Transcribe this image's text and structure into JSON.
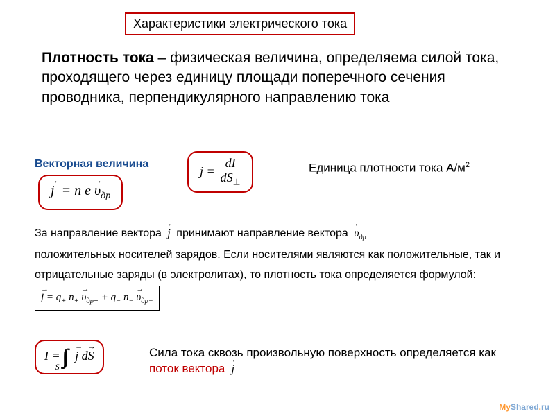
{
  "colors": {
    "border_red": "#c00000",
    "text_black": "#000000",
    "text_blue": "#174a8f",
    "background": "#ffffff",
    "watermark_blue": "#7fa8f0",
    "watermark_orange": "#ff9933"
  },
  "typography": {
    "title_fontsize": 18,
    "body_fontsize": 21,
    "para2_fontsize": 16,
    "formula_family": "Times New Roman",
    "formula_style": "italic"
  },
  "title": "Характеристики электрического тока",
  "definition": {
    "lead": "Плотность тока",
    "rest": " – физическая величина, определяема силой тока, проходящего через единицу площади поперечного сечения проводника, перпендикулярного направлению тока"
  },
  "vector_label": "Векторная величина",
  "formula_vector": "j⃗ = n e υ⃗_др",
  "formula_main": {
    "left": "j",
    "top": "dI",
    "bottom": "dS⊥"
  },
  "unit_label_prefix": "Единица плотности тока  А/м",
  "unit_label_exp": "2",
  "paragraph2": {
    "p1a": "За направление вектора ",
    "p1_vec1": "j⃗",
    "p1b": " принимают направление вектора ",
    "p1_vec2": "υ⃗_др",
    "p2": "положительных носителей зарядов. Если носителями являются как положительные, так и отрицательные заряды (в электролитах), то плотность тока определяется формулой:",
    "formula_box": "j⃗ = q₊ n₊ υ⃗_др+ + q₋ n₋ υ⃗_др−"
  },
  "formula_integral": "I = ∬_S j⃗ dS⃗",
  "final": {
    "black": "Сила тока сквозь произвольную поверхность определяется как ",
    "red": "поток вектора ",
    "vec": "j⃗"
  },
  "watermark": {
    "my": "My",
    "shared": "Shared",
    "dot": ".",
    "ru": "ru"
  }
}
